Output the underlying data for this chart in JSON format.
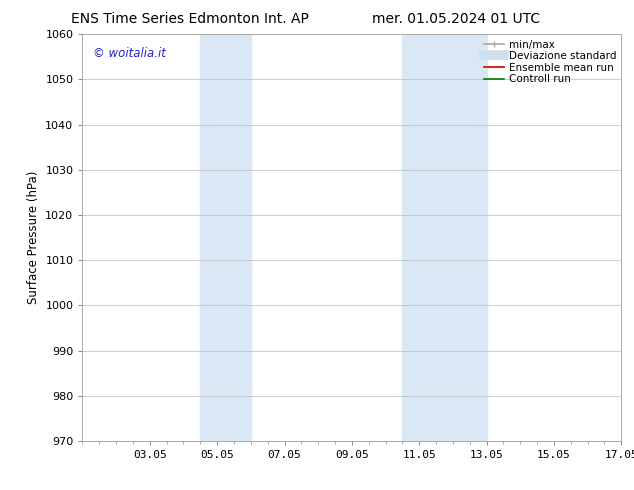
{
  "title_left": "ENS Time Series Edmonton Int. AP",
  "title_right": "mer. 01.05.2024 01 UTC",
  "ylabel": "Surface Pressure (hPa)",
  "ylim": [
    970,
    1060
  ],
  "yticks": [
    970,
    980,
    990,
    1000,
    1010,
    1020,
    1030,
    1040,
    1050,
    1060
  ],
  "xtick_labels": [
    "03.05",
    "05.05",
    "07.05",
    "09.05",
    "11.05",
    "13.05",
    "15.05",
    "17.05"
  ],
  "xtick_positions": [
    3,
    5,
    7,
    9,
    11,
    13,
    15,
    17
  ],
  "xlim": [
    1,
    17
  ],
  "shaded_bands": [
    {
      "xmin": 4.5,
      "xmax": 6.0,
      "color": "#dae8f5"
    },
    {
      "xmin": 10.5,
      "xmax": 13.0,
      "color": "#dae8f5"
    }
  ],
  "watermark_text": "© woitalia.it",
  "watermark_color": "#2222cc",
  "legend_entries": [
    {
      "label": "min/max",
      "color": "#aaaaaa",
      "lw": 1.2
    },
    {
      "label": "Deviazione standard",
      "color": "#cce0f0",
      "lw": 7
    },
    {
      "label": "Ensemble mean run",
      "color": "#cc0000",
      "lw": 1.2
    },
    {
      "label": "Controll run",
      "color": "#007700",
      "lw": 1.2
    }
  ],
  "bg_color": "#ffffff",
  "grid_color": "#bbbbbb",
  "title_fontsize": 10,
  "tick_fontsize": 8,
  "legend_fontsize": 7.5,
  "ylabel_fontsize": 8.5
}
